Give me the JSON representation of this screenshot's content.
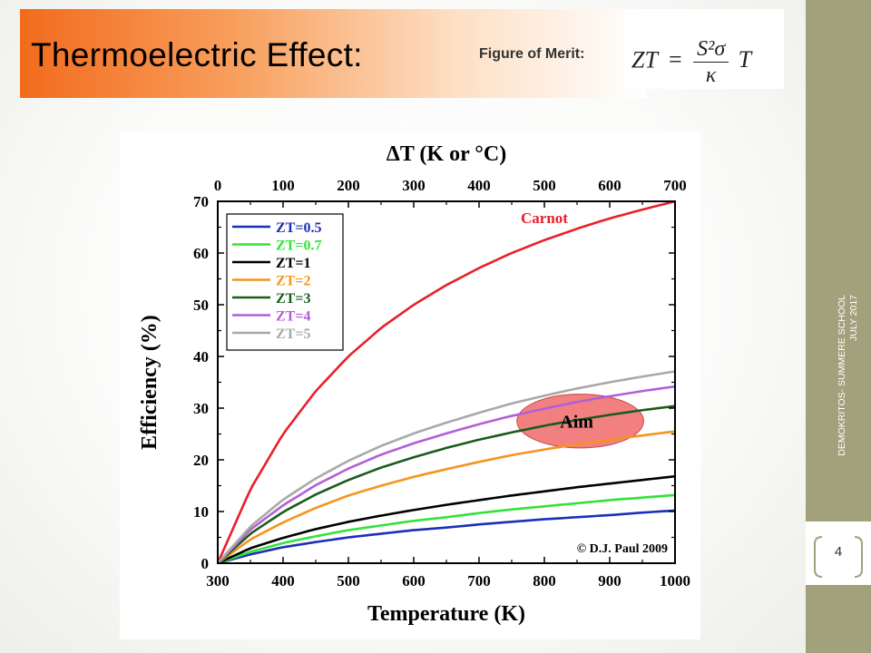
{
  "slide": {
    "title": "Thermoelectric Effect:",
    "figure_of_merit_label": "Figure of Merit:",
    "formula": {
      "lhs": "ZT",
      "eq": "=",
      "num": "S²σ",
      "den": "κ",
      "tail": "T"
    },
    "footer_line1": "DEMOKRITOS- SUMMERE SCHOOL",
    "footer_line2": "JULY 2017",
    "page_number": "4"
  },
  "colors": {
    "sidebar": "#a2a17c",
    "title_gradient_start": "#f26b1d"
  },
  "chart_data": {
    "type": "line",
    "title": "",
    "xlabel": "Temperature (K)",
    "ylabel": "Efficiency (%)",
    "top_axis_label": "ΔT (K or °C)",
    "xlim": [
      300,
      1000
    ],
    "ylim": [
      0,
      70
    ],
    "x_ticks": [
      "300",
      "400",
      "500",
      "600",
      "700",
      "800",
      "900",
      "1000"
    ],
    "top_ticks": [
      "0",
      "100",
      "200",
      "300",
      "400",
      "500",
      "600",
      "700"
    ],
    "y_ticks": [
      "0",
      "10",
      "20",
      "30",
      "40",
      "50",
      "60",
      "70"
    ],
    "x": [
      300,
      350,
      400,
      450,
      500,
      550,
      600,
      650,
      700,
      750,
      800,
      850,
      900,
      950,
      1000
    ],
    "series": [
      {
        "name": "Carnot",
        "color": "#e8202a",
        "values": [
          0,
          14.3,
          25.0,
          33.3,
          40.0,
          45.5,
          50.0,
          53.8,
          57.1,
          60.0,
          62.5,
          64.7,
          66.7,
          68.4,
          70.0
        ]
      },
      {
        "name": "ZT=0.5",
        "color": "#1b2fb8",
        "values": [
          0,
          1.7,
          3.1,
          4.1,
          5.0,
          5.7,
          6.4,
          6.9,
          7.5,
          8.0,
          8.5,
          8.9,
          9.3,
          9.8,
          10.2
        ]
      },
      {
        "name": "ZT=0.7",
        "color": "#33e23a",
        "values": [
          0,
          2.2,
          3.9,
          5.2,
          6.4,
          7.3,
          8.2,
          8.9,
          9.7,
          10.4,
          11.0,
          11.6,
          12.2,
          12.7,
          13.2
        ]
      },
      {
        "name": "ZT=1",
        "color": "#000000",
        "values": [
          0,
          2.9,
          4.9,
          6.6,
          8.0,
          9.2,
          10.3,
          11.3,
          12.2,
          13.1,
          13.9,
          14.7,
          15.4,
          16.1,
          16.8
        ]
      },
      {
        "name": "ZT=2",
        "color": "#f5941e",
        "values": [
          0,
          4.6,
          7.9,
          10.7,
          13.1,
          15.0,
          16.7,
          18.2,
          19.6,
          20.9,
          22.0,
          23.0,
          23.9,
          24.7,
          25.5
        ]
      },
      {
        "name": "ZT=3",
        "color": "#1a5c1e",
        "values": [
          0,
          5.7,
          9.9,
          13.3,
          16.1,
          18.5,
          20.5,
          22.3,
          23.9,
          25.3,
          26.6,
          27.7,
          28.7,
          29.6,
          30.4
        ]
      },
      {
        "name": "ZT=4",
        "color": "#b25fd6",
        "values": [
          0,
          6.5,
          11.2,
          15.1,
          18.3,
          21.0,
          23.2,
          25.1,
          26.9,
          28.5,
          29.9,
          31.2,
          32.3,
          33.3,
          34.2
        ]
      },
      {
        "name": "ZT=5",
        "color": "#a9a9a9",
        "values": [
          0,
          7.1,
          12.3,
          16.4,
          19.8,
          22.7,
          25.1,
          27.2,
          29.1,
          30.9,
          32.4,
          33.8,
          35.0,
          36.1,
          37.1
        ]
      }
    ],
    "annotations": {
      "carnot_label": "Carnot",
      "aim_label": "Aim",
      "credit": "© D.J. Paul 2009"
    },
    "aim_region": {
      "x_center": 855,
      "y_center": 27.5,
      "x_half_width": 97,
      "y_half_height": 5.2,
      "color": "#f06a6a"
    },
    "grid": false,
    "legend_position": "top-left"
  }
}
